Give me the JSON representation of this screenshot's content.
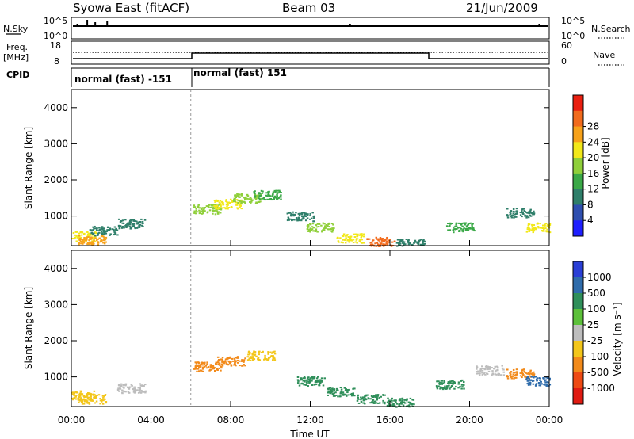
{
  "header": {
    "title": "Syowa East (fitACF)",
    "beam": "Beam 03",
    "date": "21/Jun/2009"
  },
  "status_panel": {
    "nsky_label": "N.Sky",
    "nsearch_label": "N.Search",
    "left_ticks": [
      "10^5",
      "10^0"
    ],
    "right_ticks": [
      "10^5",
      "10^0"
    ],
    "freq_label": "Freq.",
    "freq_unit": "[MHz]",
    "freq_ticks": [
      "18",
      "8"
    ],
    "nave_label": "Nave",
    "nave_ticks": [
      "60",
      "0"
    ],
    "cpid_label": "CPID",
    "cpid_segments": [
      {
        "label": "normal (fast) -151",
        "start_hour": 0,
        "end_hour": 6
      },
      {
        "label": "normal (fast) 151",
        "start_hour": 6,
        "end_hour": 24
      }
    ]
  },
  "chart_data": [
    {
      "type": "heatmap",
      "name": "power",
      "ylabel": "Slant Range [km]",
      "ylim": [
        180,
        4500
      ],
      "yticks": [
        "1000",
        "2000",
        "3000",
        "4000"
      ],
      "xlim": [
        0,
        24
      ],
      "colorbar": {
        "label": "Power [dB]",
        "ticks": [
          "4",
          "8",
          "12",
          "16",
          "20",
          "24",
          "28"
        ],
        "colors": [
          "#1f1fff",
          "#2f4fb0",
          "#2f7f6a",
          "#3aa847",
          "#8fcf3a",
          "#f2e81a",
          "#f7a21b",
          "#f26b1d",
          "#ea1f10"
        ]
      },
      "cells": [
        {
          "h": 0.5,
          "r": 450,
          "v": 20
        },
        {
          "h": 1.0,
          "r": 350,
          "v": 24
        },
        {
          "h": 1.6,
          "r": 600,
          "v": 8
        },
        {
          "h": 3.0,
          "r": 800,
          "v": 8
        },
        {
          "h": 6.8,
          "r": 1200,
          "v": 16
        },
        {
          "h": 7.8,
          "r": 1350,
          "v": 20
        },
        {
          "h": 8.8,
          "r": 1500,
          "v": 16
        },
        {
          "h": 9.8,
          "r": 1600,
          "v": 12
        },
        {
          "h": 11.5,
          "r": 1000,
          "v": 8
        },
        {
          "h": 12.5,
          "r": 700,
          "v": 16
        },
        {
          "h": 14.0,
          "r": 400,
          "v": 20
        },
        {
          "h": 15.5,
          "r": 300,
          "v": 28
        },
        {
          "h": 17.0,
          "r": 250,
          "v": 8
        },
        {
          "h": 19.5,
          "r": 700,
          "v": 12
        },
        {
          "h": 22.5,
          "r": 1100,
          "v": 8
        },
        {
          "h": 23.5,
          "r": 700,
          "v": 20
        }
      ]
    },
    {
      "type": "heatmap",
      "name": "velocity",
      "xlabel": "Time UT",
      "ylabel": "Slant Range [km]",
      "ylim": [
        180,
        4500
      ],
      "yticks": [
        "1000",
        "2000",
        "3000",
        "4000"
      ],
      "xlim": [
        0,
        24
      ],
      "xticks": [
        "00:00",
        "04:00",
        "08:00",
        "12:00",
        "16:00",
        "20:00",
        "00:00"
      ],
      "colorbar": {
        "label": "Velocity [m s⁻¹]",
        "ticks": [
          "1000",
          "500",
          "100",
          "25",
          "-25",
          "-100",
          "-500",
          "-1000"
        ],
        "colors": [
          "#2a3fd6",
          "#2f6cab",
          "#2f8f5a",
          "#5cc03a",
          "#bdbdbd",
          "#f3c61a",
          "#f28a1a",
          "#ee4a14",
          "#e01b12"
        ]
      },
      "cells": [
        {
          "h": 0.5,
          "r": 500,
          "v": -100
        },
        {
          "h": 1.0,
          "r": 400,
          "v": -100
        },
        {
          "h": 3.0,
          "r": 700,
          "v": -25
        },
        {
          "h": 6.8,
          "r": 1300,
          "v": -500
        },
        {
          "h": 8.0,
          "r": 1450,
          "v": -500
        },
        {
          "h": 9.5,
          "r": 1600,
          "v": -100
        },
        {
          "h": 12.0,
          "r": 900,
          "v": 100
        },
        {
          "h": 13.5,
          "r": 600,
          "v": 100
        },
        {
          "h": 15.0,
          "r": 400,
          "v": 100
        },
        {
          "h": 16.5,
          "r": 300,
          "v": 100
        },
        {
          "h": 19.0,
          "r": 800,
          "v": 100
        },
        {
          "h": 21.0,
          "r": 1200,
          "v": -25
        },
        {
          "h": 22.5,
          "r": 1100,
          "v": -500
        },
        {
          "h": 23.5,
          "r": 900,
          "v": 500
        }
      ]
    }
  ]
}
